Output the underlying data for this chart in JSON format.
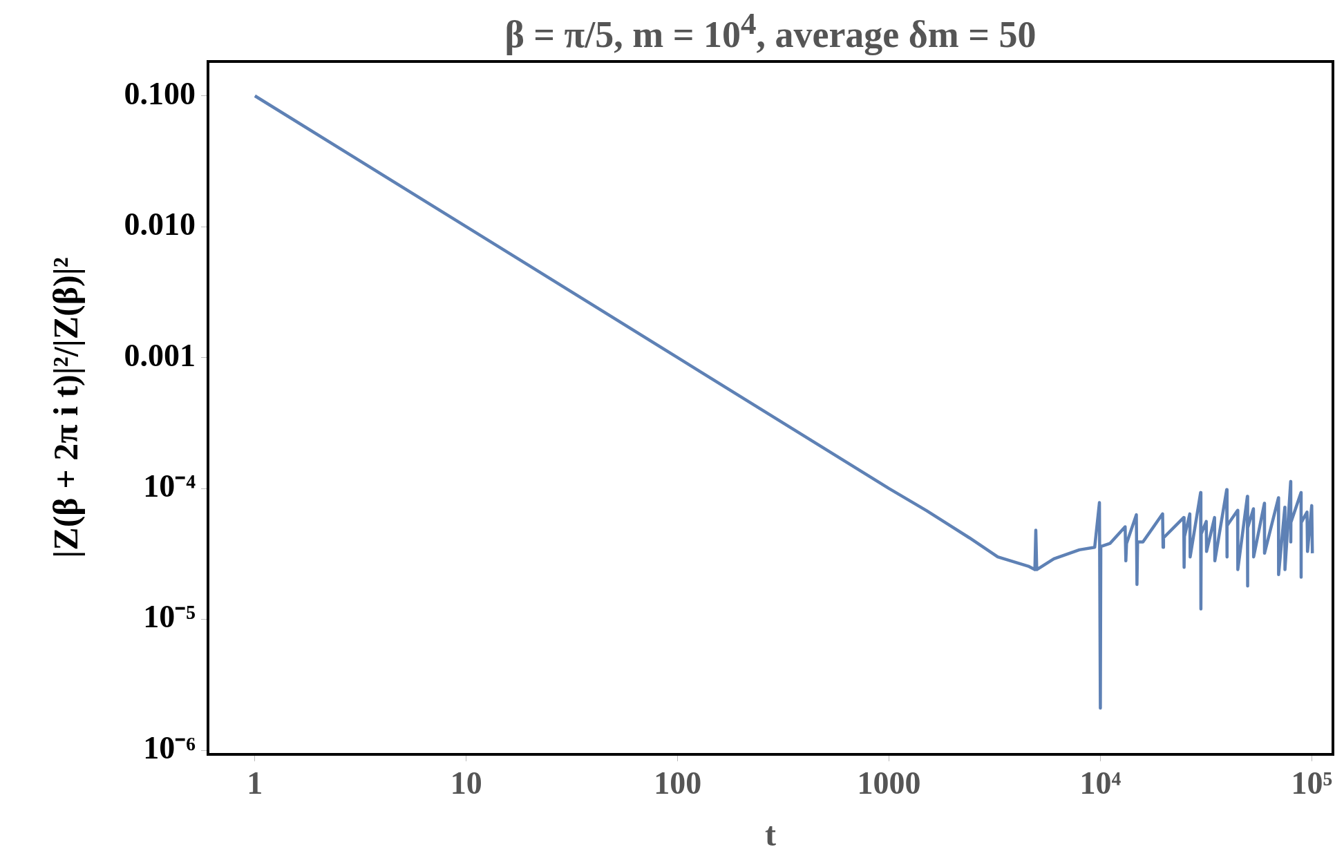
{
  "chart_data": {
    "type": "line",
    "title": "β = π/5, m = 10$^{4}$, average δm = 50",
    "xlabel": "t",
    "ylabel": "|Z(β + 2π i t)|²/|Z(β)|²",
    "log": "xy",
    "xlim": [
      0.616,
      126000
    ],
    "ylim": [
      9.3e-07,
      0.183
    ],
    "xticks": [
      1,
      10,
      100,
      1000,
      {
        "value": 10000,
        "label": "10⁴"
      },
      {
        "value": 100000,
        "label": "10⁵"
      }
    ],
    "yticks": [
      {
        "value": 0.1,
        "label": "0.100"
      },
      {
        "value": 0.01,
        "label": "0.010"
      },
      {
        "value": 0.001,
        "label": "0.001"
      },
      {
        "value": 0.0001,
        "label": "10⁻⁴"
      },
      {
        "value": 1e-05,
        "label": "10⁻⁵"
      },
      {
        "value": 1e-06,
        "label": "10⁻⁶"
      }
    ],
    "series": [
      {
        "color": "#5e81b5",
        "x": [
          1,
          10,
          100,
          1000,
          1500,
          2400,
          3270,
          4560,
          4900,
          4950,
          5000,
          6030,
          7960,
          9400,
          9900,
          10000,
          10050,
          11100,
          13100,
          13200,
          13300,
          14800,
          14900,
          15000,
          15900,
          19700,
          19800,
          19900,
          24800,
          24900,
          25000,
          26500,
          26600,
          29800,
          29900,
          30000,
          31700,
          31800,
          34700,
          34800,
          39600,
          39700,
          39800,
          44600,
          44700,
          49600,
          49700,
          49800,
          53000,
          53100,
          59700,
          59800,
          69600,
          69700,
          74600,
          74700,
          79500,
          79600,
          79700,
          89000,
          89100,
          89200,
          95000,
          95500,
          100000,
          100700
        ],
        "values": [
          0.1,
          0.01,
          0.001,
          0.0001,
          6.8e-05,
          4.2e-05,
          3e-05,
          2.55e-05,
          2.4e-05,
          4.8e-05,
          2.4e-05,
          2.9e-05,
          3.4e-05,
          3.55e-05,
          7.8e-05,
          2.1e-06,
          3.6e-05,
          3.8e-05,
          5.1e-05,
          2.8e-05,
          3.8e-05,
          6.3e-05,
          1.85e-05,
          3.9e-05,
          3.9e-05,
          6.4e-05,
          3.55e-05,
          4.2e-05,
          6e-05,
          2.5e-05,
          4.3e-05,
          6.4e-05,
          3e-05,
          9.3e-05,
          1.2e-05,
          4.5e-05,
          5.6e-05,
          3.3e-05,
          6e-05,
          2.8e-05,
          9.8e-05,
          3e-05,
          5.2e-05,
          6.8e-05,
          2.4e-05,
          8.7e-05,
          1.8e-05,
          5e-05,
          7e-05,
          3e-05,
          7.7e-05,
          3.2e-05,
          8.5e-05,
          2.2e-05,
          7.2e-05,
          2.4e-05,
          0.000113,
          3.9e-05,
          5.5e-05,
          9.3e-05,
          2.1e-05,
          5.5e-05,
          6.6e-05,
          3.3e-05,
          7.4e-05,
          3.2e-05
        ]
      }
    ]
  }
}
